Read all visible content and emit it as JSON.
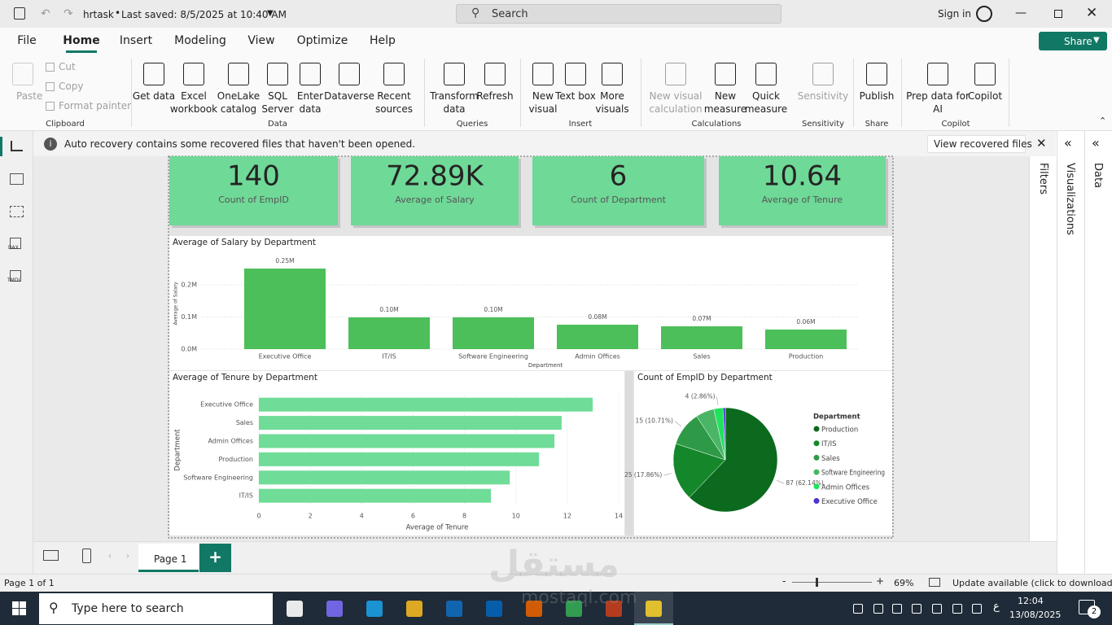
{
  "titlebar": {
    "file": "hrtask",
    "status": "Last saved: 8/5/2025 at 10:40 AM",
    "search": "Search",
    "sign_in": "Sign in"
  },
  "menu": {
    "tabs": [
      "File",
      "Home",
      "Insert",
      "Modeling",
      "View",
      "Optimize",
      "Help"
    ],
    "share": "Share"
  },
  "ribbon": {
    "groups": [
      {
        "name": "Clipboard",
        "buttons": [
          "Paste",
          "Cut",
          "Copy",
          "Format painter"
        ]
      },
      {
        "name": "Data",
        "buttons": [
          "Get data",
          "Excel workbook",
          "OneLake catalog",
          "SQL Server",
          "Enter data",
          "Dataverse",
          "Recent sources"
        ]
      },
      {
        "name": "Queries",
        "buttons": [
          "Transform data",
          "Refresh"
        ]
      },
      {
        "name": "Insert",
        "buttons": [
          "New visual",
          "Text box",
          "More visuals"
        ]
      },
      {
        "name": "Calculations",
        "buttons": [
          "New visual calculation",
          "New measure",
          "Quick measure"
        ]
      },
      {
        "name": "Sensitivity",
        "buttons": [
          "Sensitivity"
        ]
      },
      {
        "name": "Share",
        "buttons": [
          "Publish"
        ]
      },
      {
        "name": "Copilot",
        "buttons": [
          "Prep data for AI",
          "Copilot"
        ]
      }
    ]
  },
  "left_nav": [
    "DAX",
    "TMDL"
  ],
  "notification": {
    "text": "Auto recovery contains some recovered files that haven't been opened.",
    "action": "View recovered files"
  },
  "cards": [
    {
      "value": "140",
      "label": "Count of EmpID"
    },
    {
      "value": "72.89K",
      "label": "Average of Salary"
    },
    {
      "value": "6",
      "label": "Count of Department"
    },
    {
      "value": "10.64",
      "label": "Average of Tenure"
    }
  ],
  "chart_data": [
    {
      "type": "bar",
      "title": "Average of Salary by Department",
      "x_label": "Department",
      "y_label": "Average of Salary",
      "categories": [
        "Executive Office",
        "IT/IS",
        "Software Engineering",
        "Admin Offices",
        "Sales",
        "Production"
      ],
      "values": [
        250600,
        98700,
        98900,
        76000,
        71000,
        61000
      ],
      "value_labels": [
        "0.25M",
        "0.10M",
        "0.10M",
        "0.08M",
        "0.07M",
        "0.06M"
      ],
      "color": "#4cbf5a",
      "ylim": [
        0,
        260000
      ],
      "yticks": [
        {
          "value": 0,
          "label": "0.0M"
        },
        {
          "value": 100000,
          "label": "0.1M"
        },
        {
          "value": 200000,
          "label": "0.2M"
        }
      ],
      "grid": true
    },
    {
      "type": "hbar",
      "title": "Average of Tenure by Department",
      "x_label": "Average of Tenure",
      "y_label": "Department",
      "categories": [
        "Executive Office",
        "Sales",
        "Admin Offices",
        "Production",
        "Software Engineering",
        "IT/IS"
      ],
      "values": [
        12.99,
        11.78,
        11.5,
        10.9,
        9.76,
        9.03
      ],
      "color": "#6fdc98",
      "xlim": [
        0,
        14
      ],
      "xticks": [
        0,
        2,
        4,
        6,
        8,
        10,
        12,
        14
      ],
      "grid": true
    },
    {
      "type": "pie",
      "title": "Count of EmpID by Department",
      "legend_title": "Department",
      "categories": [
        "Production",
        "IT/IS",
        "Sales",
        "Software Engineering",
        "Admin Offices",
        "Executive Office"
      ],
      "values": [
        87,
        25,
        15,
        8,
        4,
        1
      ],
      "value_labels": [
        "87 (62.14%)",
        "25 (17.86%)",
        "15 (10.71%)",
        null,
        "4 (2.86%)",
        null
      ],
      "colors": [
        "#0b6a1d",
        "#14872a",
        "#2e9a47",
        "#49b565",
        "#1fe35c",
        "#4b33d1"
      ]
    }
  ],
  "panes": [
    "Filters",
    "Visualizations",
    "Data"
  ],
  "pages": {
    "tabs": [
      "Page 1"
    ]
  },
  "status": {
    "page": "Page 1 of 1",
    "zoom": "69%",
    "update": "Update available (click to download)"
  },
  "watermark": {
    "arabic": "مستقل",
    "latin": "mostaql.com"
  },
  "taskbar": {
    "search": "Type here to search",
    "language": "ع",
    "time": "12:04",
    "date": "13/08/2025",
    "notifications": "2"
  }
}
